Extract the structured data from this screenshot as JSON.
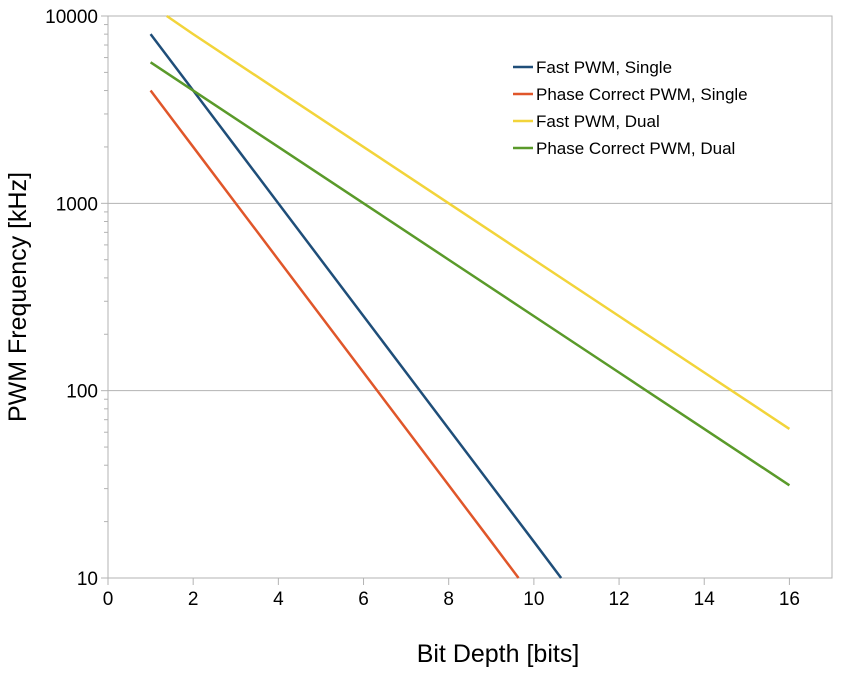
{
  "chart_data": {
    "type": "line",
    "title": "",
    "xlabel": "Bit Depth [bits]",
    "ylabel": "PWM Frequency [kHz]",
    "xlim": [
      0,
      17
    ],
    "ylim": [
      10,
      10000
    ],
    "yscale": "log",
    "grid": "horizontal major",
    "legend_position": "top-right",
    "x_ticks": [
      0,
      2,
      4,
      6,
      8,
      10,
      12,
      14,
      16
    ],
    "x_tick_labels": [
      "0",
      "2",
      "4",
      "6",
      "8",
      "10",
      "12",
      "14",
      "16"
    ],
    "y_ticks": [
      10,
      100,
      1000,
      10000
    ],
    "y_tick_labels": [
      "10",
      "100",
      "1000",
      "10000"
    ],
    "series": [
      {
        "name": "Fast PWM, Single",
        "color": "#1f4e79",
        "x": [
          1,
          2,
          3,
          4,
          5,
          6,
          7,
          8,
          9,
          10,
          10.64
        ],
        "y": [
          8000,
          4000,
          2000,
          1000,
          500,
          250,
          125,
          62.5,
          31.25,
          15.625,
          10
        ]
      },
      {
        "name": "Phase Correct PWM, Single",
        "color": "#e0562a",
        "x": [
          1,
          2,
          3,
          4,
          5,
          6,
          7,
          8,
          9,
          9.64
        ],
        "y": [
          4000,
          2000,
          1000,
          500,
          250,
          125,
          62.5,
          31.25,
          15.625,
          10
        ]
      },
      {
        "name": "Fast PWM, Dual",
        "color": "#f2d43a",
        "x": [
          1.38,
          2,
          4,
          6,
          8,
          10,
          12,
          14,
          16
        ],
        "y": [
          10000,
          8000,
          4000,
          2000,
          1000,
          500,
          250,
          125,
          62.5
        ]
      },
      {
        "name": "Phase Correct PWM, Dual",
        "color": "#5a9a2a",
        "x": [
          1,
          2,
          4,
          6,
          8,
          10,
          12,
          14,
          16
        ],
        "y": [
          5657,
          4000,
          2000,
          1000,
          500,
          250,
          125,
          62.5,
          31.25
        ]
      }
    ]
  }
}
